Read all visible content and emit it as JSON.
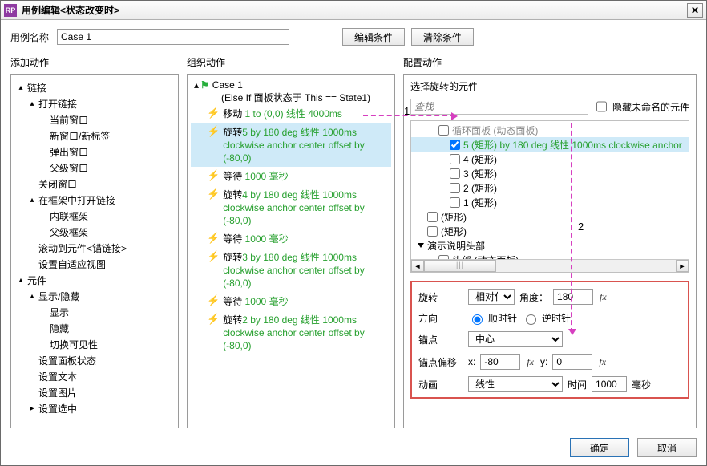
{
  "window": {
    "title": "用例编辑<状态改变时>",
    "logo_text": "RP"
  },
  "name_row": {
    "label": "用例名称",
    "value": "Case 1",
    "edit_btn": "编辑条件",
    "clear_btn": "清除条件"
  },
  "columns": {
    "add": "添加动作",
    "org": "组织动作",
    "cfg": "配置动作"
  },
  "left_tree": [
    {
      "d": 0,
      "tw": "▴",
      "t": "链接"
    },
    {
      "d": 1,
      "tw": "▴",
      "t": "打开链接"
    },
    {
      "d": 2,
      "tw": "",
      "t": "当前窗口"
    },
    {
      "d": 2,
      "tw": "",
      "t": "新窗口/新标签"
    },
    {
      "d": 2,
      "tw": "",
      "t": "弹出窗口"
    },
    {
      "d": 2,
      "tw": "",
      "t": "父级窗口"
    },
    {
      "d": 1,
      "tw": "",
      "t": "关闭窗口"
    },
    {
      "d": 1,
      "tw": "▴",
      "t": "在框架中打开链接"
    },
    {
      "d": 2,
      "tw": "",
      "t": "内联框架"
    },
    {
      "d": 2,
      "tw": "",
      "t": "父级框架"
    },
    {
      "d": 1,
      "tw": "",
      "t": "滚动到元件<锚链接>"
    },
    {
      "d": 1,
      "tw": "",
      "t": "设置自适应视图"
    },
    {
      "d": 0,
      "tw": "▴",
      "t": "元件"
    },
    {
      "d": 1,
      "tw": "▴",
      "t": "显示/隐藏"
    },
    {
      "d": 2,
      "tw": "",
      "t": "显示"
    },
    {
      "d": 2,
      "tw": "",
      "t": "隐藏"
    },
    {
      "d": 2,
      "tw": "",
      "t": "切换可见性"
    },
    {
      "d": 1,
      "tw": "",
      "t": "设置面板状态"
    },
    {
      "d": 1,
      "tw": "",
      "t": "设置文本"
    },
    {
      "d": 1,
      "tw": "",
      "t": "设置图片"
    },
    {
      "d": 1,
      "tw": "▸",
      "t": "设置选中"
    }
  ],
  "case": {
    "title": "Case 1",
    "desc": "(Else If 面板状态于 This == State1)"
  },
  "action_list": [
    {
      "name": "移动",
      "green": " 1 to (0,0) 线性 4000ms",
      "sel": false,
      "wrap": ""
    },
    {
      "name": "旋转",
      "green": "5 by 180 deg 线性 1000ms clockwise anchor center offset by (-80,0)",
      "sel": true,
      "wrap": ""
    },
    {
      "name": "等待",
      "green": " 1000 毫秒",
      "sel": false,
      "wrap": ""
    },
    {
      "name": "旋转",
      "green": "4 by 180 deg 线性 1000ms clockwise anchor center offset by (-80,0)",
      "sel": false,
      "wrap": ""
    },
    {
      "name": "等待",
      "green": " 1000 毫秒",
      "sel": false,
      "wrap": ""
    },
    {
      "name": "旋转",
      "green": "3 by 180 deg 线性 1000ms clockwise anchor center offset by (-80,0)",
      "sel": false,
      "wrap": ""
    },
    {
      "name": "等待",
      "green": " 1000 毫秒",
      "sel": false,
      "wrap": ""
    },
    {
      "name": "旋转",
      "green": "2 by 180 deg 线性 1000ms clockwise anchor center offset by (-80,0)",
      "sel": false,
      "wrap": ""
    }
  ],
  "cfg": {
    "subtitle": "选择旋转的元件",
    "search_placeholder": "查找",
    "hide_unnamed": "隐藏未命名的元件",
    "targets": [
      {
        "indent": 34,
        "cb": true,
        "checked": false,
        "text": "循环面板 (动态面板)",
        "tri": false,
        "faint": true
      },
      {
        "indent": 48,
        "cb": true,
        "checked": true,
        "text": "5 (矩形) by 180 deg 线性 1000ms clockwise anchor",
        "tri": false,
        "green": true
      },
      {
        "indent": 48,
        "cb": true,
        "checked": false,
        "text": "4 (矩形)",
        "tri": false
      },
      {
        "indent": 48,
        "cb": true,
        "checked": false,
        "text": "3 (矩形)",
        "tri": false
      },
      {
        "indent": 48,
        "cb": true,
        "checked": false,
        "text": "2 (矩形)",
        "tri": false
      },
      {
        "indent": 48,
        "cb": true,
        "checked": false,
        "text": "1 (矩形)",
        "tri": false
      },
      {
        "indent": 20,
        "cb": true,
        "checked": false,
        "text": "(矩形)",
        "tri": false
      },
      {
        "indent": 20,
        "cb": true,
        "checked": false,
        "text": "(矩形)",
        "tri": false
      },
      {
        "indent": 8,
        "cb": false,
        "checked": false,
        "text": "演示说明头部",
        "tri": true
      },
      {
        "indent": 34,
        "cb": true,
        "checked": false,
        "text": "头部 (动态面板)",
        "tri": false
      }
    ],
    "rotate_label": "旋转",
    "rotate_mode": "相对位",
    "angle_label": "角度：",
    "angle": "180",
    "dir_label": "方向",
    "cw": "顺时针",
    "ccw": "逆时针",
    "anchor_label": "锚点",
    "anchor": "中心",
    "offset_label": "锚点偏移",
    "x_label": "x:",
    "x": "-80",
    "y_label": "y:",
    "y": "0",
    "anim_label": "动画",
    "anim": "线性",
    "time_label": "时间",
    "time": "1000",
    "ms": "毫秒",
    "fx": "fx"
  },
  "footer": {
    "ok": "确定",
    "cancel": "取消"
  },
  "anno": {
    "n1": "1",
    "n2": "2"
  },
  "twisty": {
    "down": "▴",
    "right": "▸"
  }
}
